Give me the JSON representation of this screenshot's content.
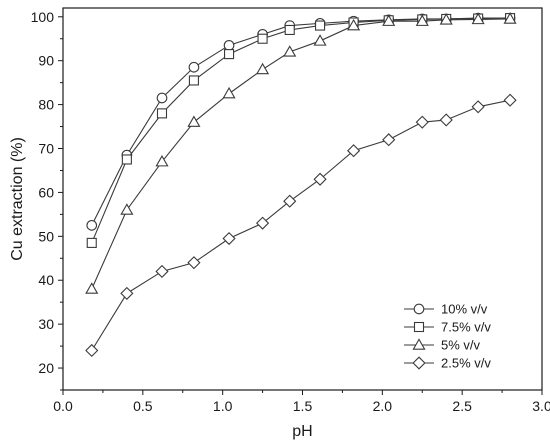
{
  "chart_data": {
    "type": "line",
    "title": "",
    "xlabel": "pH",
    "ylabel": "Cu extraction (%)",
    "xlim": [
      0.0,
      3.0
    ],
    "ylim": [
      15,
      102
    ],
    "xticks": [
      "0.0",
      "0.5",
      "1.0",
      "1.5",
      "2.0",
      "2.5",
      "3.0"
    ],
    "yticks": [
      "20",
      "30",
      "40",
      "50",
      "60",
      "70",
      "80",
      "90",
      "100"
    ],
    "grid": false,
    "legend_position": "bottom-right",
    "x": [
      0.18,
      0.4,
      0.62,
      0.82,
      1.04,
      1.25,
      1.42,
      1.61,
      1.82,
      2.04,
      2.25,
      2.4,
      2.6,
      2.8
    ],
    "series": [
      {
        "name": "10% v/v",
        "marker": "circle",
        "values": [
          52.5,
          68.5,
          81.5,
          88.5,
          93.5,
          96,
          98,
          98.5,
          99,
          99.3,
          99.5,
          99.5,
          99.7,
          99.7
        ]
      },
      {
        "name": "7.5% v/v",
        "marker": "square",
        "values": [
          48.5,
          67.5,
          78,
          85.5,
          91.5,
          95,
          97,
          98,
          98.7,
          99.2,
          99.4,
          99.5,
          99.6,
          99.7
        ]
      },
      {
        "name": "5% v/v",
        "marker": "triangle",
        "values": [
          38,
          56,
          67,
          76,
          82.5,
          88,
          92,
          94.5,
          98,
          99,
          99,
          99.3,
          99.4,
          99.5
        ]
      },
      {
        "name": "2.5% v/v",
        "marker": "diamond",
        "values": [
          24,
          37,
          42,
          44,
          49.5,
          53,
          58,
          63,
          69.5,
          72,
          76,
          76.5,
          79.5,
          81
        ]
      }
    ],
    "colors": {
      "line": "#3a3a3a",
      "axis": "#1a1a1a",
      "marker_fill": "#ffffff"
    }
  }
}
